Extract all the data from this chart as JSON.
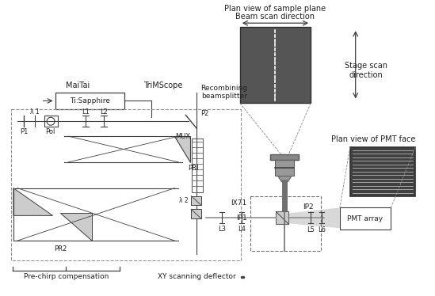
{
  "title": "",
  "bg_color": "#ffffff",
  "fig_width": 5.49,
  "fig_height": 3.74,
  "top_labels": {
    "plan_view_sample": "Plan view of sample plane",
    "beam_scan": "Beam scan direction",
    "stage_scan": "Stage scan\ndirection",
    "plan_view_pmt": "Plan view of PMT face",
    "pmt_array": "PMT array"
  },
  "bottom_labels": {
    "pre_chirp": "Pre-chirp compensation",
    "xy_scan": "XY scanning deflector"
  },
  "component_labels": {
    "maitai": "MaiTai",
    "trimscope": "TriMScope",
    "recombining": "Recombining\nbeamsplitter",
    "ti_sapphire": "Ti:Sapphire",
    "p1": "P1",
    "pol": "Pol",
    "l1": "L1",
    "l2": "L2",
    "p2": "P2",
    "pr1": "PRI",
    "mux": "MUX",
    "pr2": "PR2",
    "lambda1": "λ 1",
    "lambda2": "λ 2",
    "l3": "L3",
    "l4": "L4",
    "ix71": "IX71",
    "ip1": "IP1",
    "ip2": "IP2",
    "l5": "L5",
    "l6": "L6"
  },
  "colors": {
    "line": "#404040",
    "dashed_box": "#808080",
    "light_gray": "#b0b0b0",
    "dark_gray": "#505050",
    "beam_gray": "#a0a0a0"
  }
}
